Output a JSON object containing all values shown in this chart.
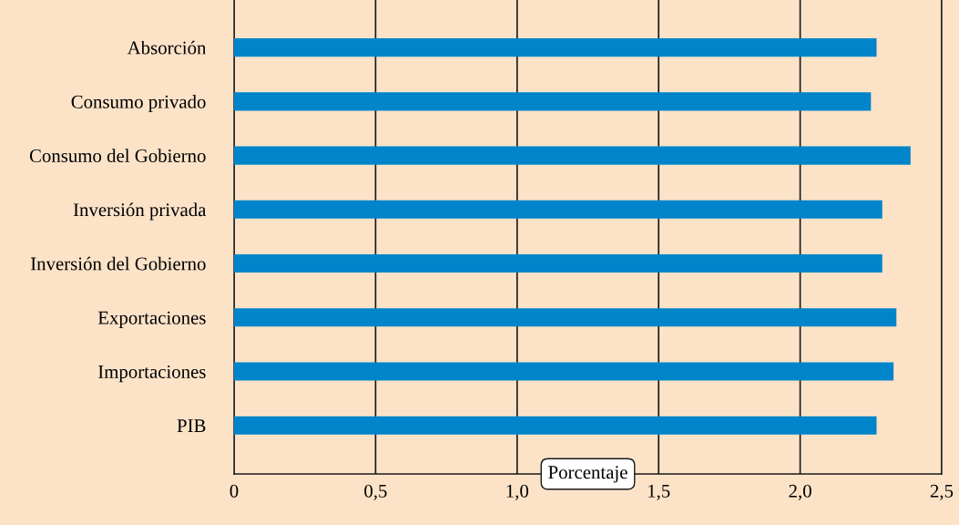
{
  "chart_data": {
    "type": "bar",
    "orientation": "horizontal",
    "xlabel": "Porcentaje",
    "categories": [
      "Absorción",
      "Consumo privado",
      "Consumo del Gobierno",
      "Inversión privada",
      "Inversión del Gobierno",
      "Exportaciones",
      "Importaciones",
      "PIB"
    ],
    "values": [
      2.27,
      2.25,
      2.39,
      2.29,
      2.29,
      2.34,
      2.33,
      2.27
    ],
    "color": "#0085ca",
    "xlim": [
      0,
      2.5
    ],
    "xticks": [
      0,
      {
        "value": 0.5,
        "label": "0,5"
      },
      {
        "value": 1.0,
        "label": "1,0"
      },
      {
        "value": 1.5,
        "label": "1,5"
      },
      {
        "value": 2.0,
        "label": "2,0"
      },
      {
        "value": 2.5,
        "label": "2,5"
      }
    ],
    "grid": "x",
    "legend": false
  }
}
